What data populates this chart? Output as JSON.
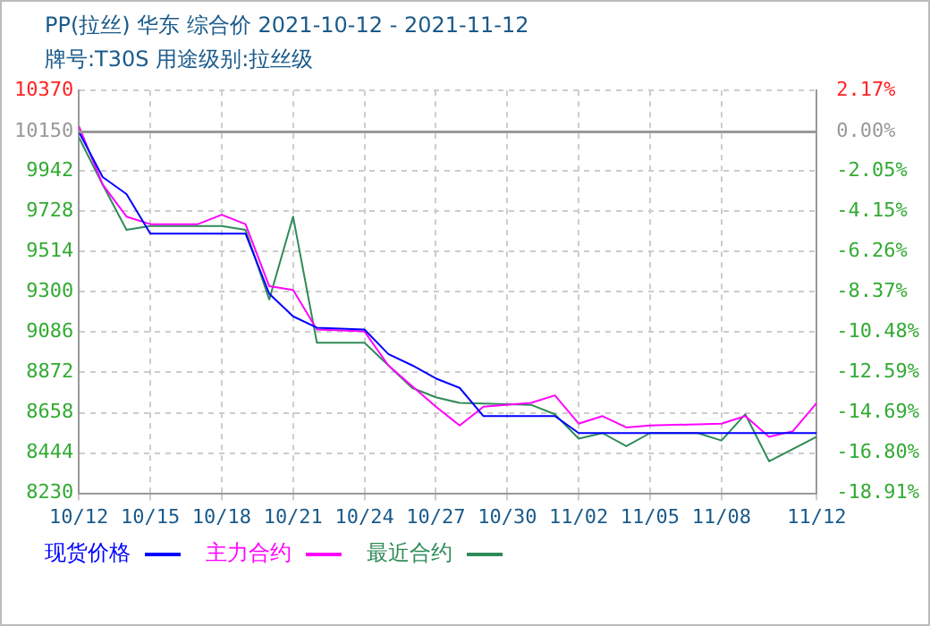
{
  "chart_data": {
    "type": "line",
    "title": "PP(拉丝) 华东 综合价 2021-10-12 - 2021-11-12",
    "subtitle": "牌号:T30S 用途级别:拉丝级",
    "xlim": [
      "2021-10-12",
      "2021-11-12"
    ],
    "xticks": [
      {
        "value": "2021-10-12",
        "label": "10/12"
      },
      {
        "value": "2021-10-15",
        "label": "10/15"
      },
      {
        "value": "2021-10-18",
        "label": "10/18"
      },
      {
        "value": "2021-10-21",
        "label": "10/21"
      },
      {
        "value": "2021-10-24",
        "label": "10/24"
      },
      {
        "value": "2021-10-27",
        "label": "10/27"
      },
      {
        "value": "2021-10-30",
        "label": "10/30"
      },
      {
        "value": "2021-11-02",
        "label": "11/02"
      },
      {
        "value": "2021-11-05",
        "label": "11/05"
      },
      {
        "value": "2021-11-08",
        "label": "11/08"
      },
      {
        "value": "2021-11-12",
        "label": "11/12"
      }
    ],
    "ylim": [
      8230,
      10370
    ],
    "yticks": [
      8230,
      8444,
      8658,
      8872,
      9086,
      9300,
      9514,
      9728,
      9942,
      10150,
      10370
    ],
    "y2lim": [
      -18.91,
      2.17
    ],
    "y2ticks": [
      {
        "value": -18.91,
        "label": "-18.91%"
      },
      {
        "value": -16.8,
        "label": "-16.80%"
      },
      {
        "value": -14.69,
        "label": "-14.69%"
      },
      {
        "value": -12.59,
        "label": "-12.59%"
      },
      {
        "value": -10.48,
        "label": "-10.48%"
      },
      {
        "value": -8.37,
        "label": "-8.37%"
      },
      {
        "value": -6.26,
        "label": "-6.26%"
      },
      {
        "value": -4.15,
        "label": "-4.15%"
      },
      {
        "value": -2.05,
        "label": "-2.05%"
      },
      {
        "value": 0,
        "label": "0.00%"
      },
      {
        "value": 2.17,
        "label": "2.17%"
      }
    ],
    "ref_lines": [
      {
        "axis": "y",
        "value": 10150
      }
    ],
    "grid": true,
    "legend": "bottom",
    "marker": "none",
    "line_style": "solid",
    "series": [
      {
        "name": "现货价格",
        "color": "#0000ff",
        "x": [
          "2021-10-12",
          "2021-10-13",
          "2021-10-14",
          "2021-10-15",
          "2021-10-19",
          "2021-10-20",
          "2021-10-21",
          "2021-10-22",
          "2021-10-24",
          "2021-10-25",
          "2021-10-26",
          "2021-10-27",
          "2021-10-28",
          "2021-10-29",
          "2021-11-01",
          "2021-11-02",
          "2021-11-12"
        ],
        "values": [
          10150,
          9910,
          9820,
          9610,
          9610,
          9290,
          9170,
          9110,
          9100,
          8970,
          8910,
          8840,
          8790,
          8640,
          8640,
          8550,
          8550
        ]
      },
      {
        "name": "主力合约",
        "color": "#ff00ff",
        "x": [
          "2021-10-12",
          "2021-10-13",
          "2021-10-14",
          "2021-10-15",
          "2021-10-17",
          "2021-10-18",
          "2021-10-19",
          "2021-10-20",
          "2021-10-21",
          "2021-10-22",
          "2021-10-24",
          "2021-10-25",
          "2021-10-26",
          "2021-10-27",
          "2021-10-28",
          "2021-10-29",
          "2021-10-31",
          "2021-11-01",
          "2021-11-02",
          "2021-11-03",
          "2021-11-04",
          "2021-11-05",
          "2021-11-08",
          "2021-11-09",
          "2021-11-10",
          "2021-11-11",
          "2021-11-12"
        ],
        "values": [
          10180,
          9870,
          9700,
          9660,
          9660,
          9710,
          9660,
          9330,
          9310,
          9100,
          9090,
          8910,
          8800,
          8690,
          8590,
          8690,
          8710,
          8750,
          8600,
          8640,
          8580,
          8590,
          8600,
          8640,
          8530,
          8560,
          8710
        ]
      },
      {
        "name": "最近合约",
        "color": "#2e8b57",
        "x": [
          "2021-10-12",
          "2021-10-13",
          "2021-10-14",
          "2021-10-15",
          "2021-10-18",
          "2021-10-19",
          "2021-10-20",
          "2021-10-21",
          "2021-10-22",
          "2021-10-24",
          "2021-10-26",
          "2021-10-27",
          "2021-10-28",
          "2021-10-31",
          "2021-11-01",
          "2021-11-02",
          "2021-11-03",
          "2021-11-04",
          "2021-11-05",
          "2021-11-07",
          "2021-11-08",
          "2021-11-09",
          "2021-11-10",
          "2021-11-12"
        ],
        "values": [
          10120,
          9870,
          9630,
          9650,
          9650,
          9630,
          9260,
          9700,
          9030,
          9030,
          8790,
          8740,
          8710,
          8700,
          8650,
          8520,
          8550,
          8480,
          8550,
          8550,
          8510,
          8650,
          8400,
          8530
        ]
      }
    ]
  }
}
